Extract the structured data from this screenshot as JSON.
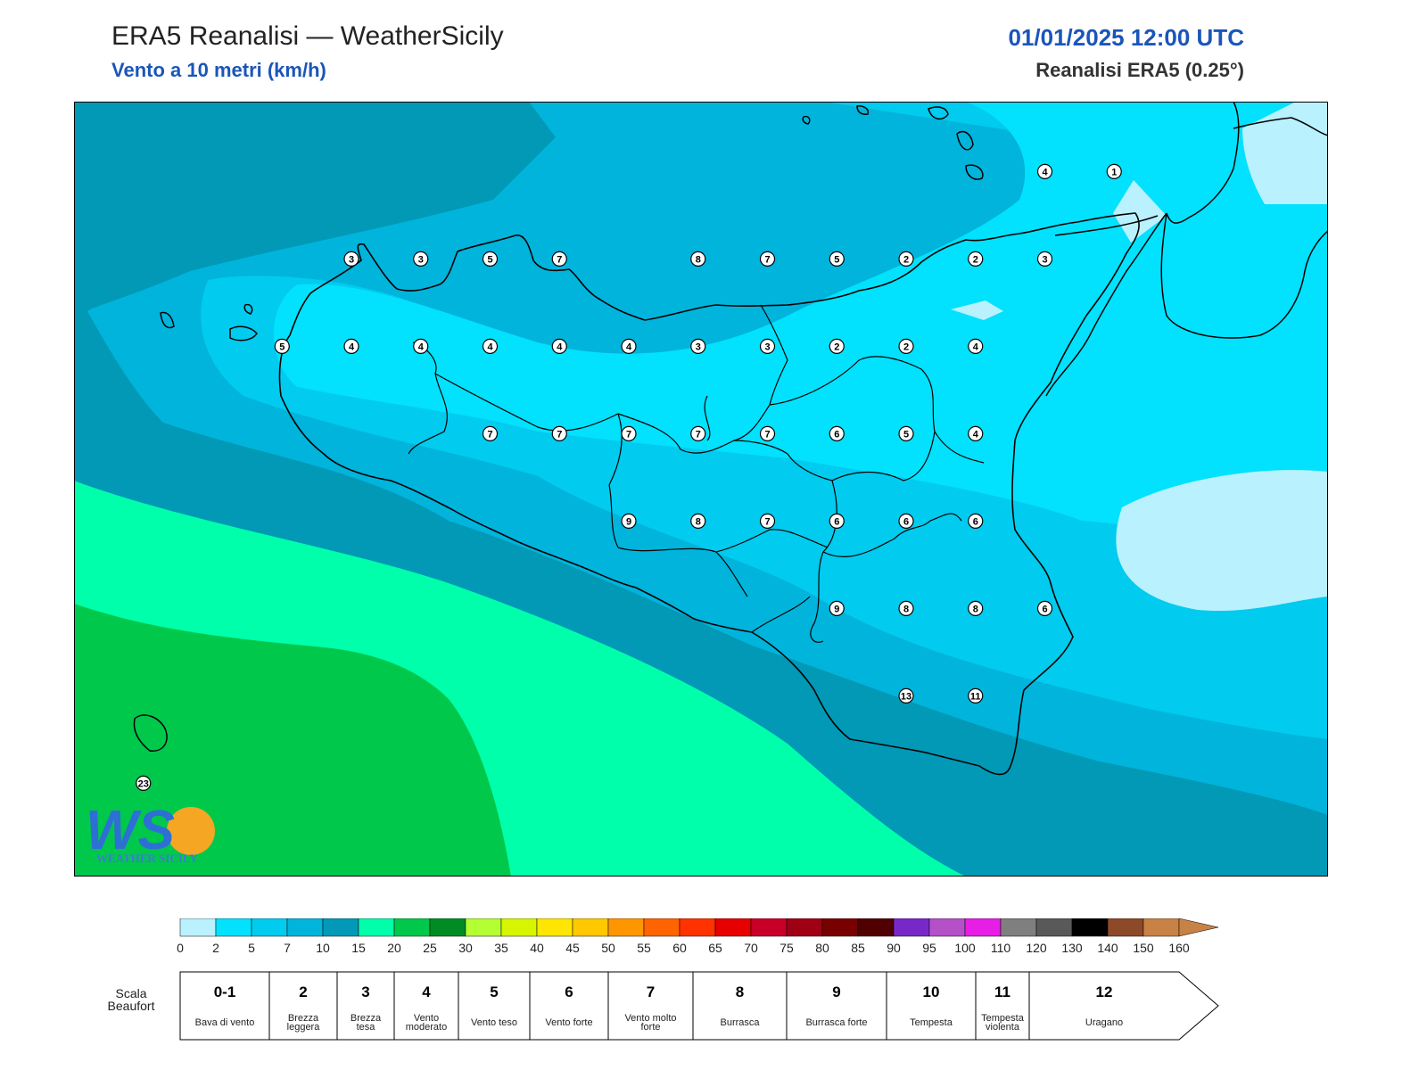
{
  "header": {
    "title": "ERA5 Reanalisi — WeatherSicily",
    "subtitle": "Vento a 10 metri (km/h)",
    "datetime": "01/01/2025 12:00 UTC",
    "source": "Reanalisi ERA5 (0.25°)"
  },
  "colors": {
    "wind_0_2": "#b9f1ff",
    "wind_2_5": "#02e1fd",
    "wind_5_7": "#01cbee",
    "wind_7_10": "#01b4dc",
    "wind_10_15": "#0199b6",
    "wind_15_20": "#00ffaa",
    "wind_20_25": "#00c84b"
  },
  "colorbar": {
    "ticks": [
      "0",
      "2",
      "5",
      "7",
      "10",
      "15",
      "20",
      "25",
      "30",
      "35",
      "40",
      "45",
      "50",
      "55",
      "60",
      "65",
      "70",
      "75",
      "80",
      "85",
      "90",
      "95",
      "100",
      "110",
      "120",
      "130",
      "140",
      "150",
      "160"
    ],
    "colors": [
      "#b9f1ff",
      "#02e1fd",
      "#01cbee",
      "#01b4dc",
      "#0199b6",
      "#00ffaa",
      "#00c84b",
      "#008c23",
      "#b4ff32",
      "#d7f500",
      "#ffe600",
      "#ffc800",
      "#ff9600",
      "#ff6400",
      "#ff3200",
      "#e60000",
      "#c80028",
      "#a00014",
      "#780000",
      "#500000",
      "#7828c8",
      "#b450c8",
      "#e61ee6",
      "#7f7f7f",
      "#595959",
      "#000000",
      "#8c4a28",
      "#c88246"
    ]
  },
  "beaufort": {
    "label": "Scala Beaufort",
    "classes": [
      {
        "num": "0-1",
        "desc": "Bava di vento"
      },
      {
        "num": "2",
        "desc": "Brezza leggera"
      },
      {
        "num": "3",
        "desc": "Brezza tesa"
      },
      {
        "num": "4",
        "desc": "Vento moderato"
      },
      {
        "num": "5",
        "desc": "Vento teso"
      },
      {
        "num": "6",
        "desc": "Vento forte"
      },
      {
        "num": "7",
        "desc": "Vento molto forte"
      },
      {
        "num": "8",
        "desc": "Burrasca"
      },
      {
        "num": "9",
        "desc": "Burrasca forte"
      },
      {
        "num": "10",
        "desc": "Tempesta"
      },
      {
        "num": "11",
        "desc": "Tempesta violenta"
      },
      {
        "num": "12",
        "desc": "Uragano"
      }
    ]
  },
  "station_values": [
    {
      "lat": 38.25,
      "lon": 12.75,
      "value": "3"
    },
    {
      "lat": 38.25,
      "lon": 13.0,
      "value": "3"
    },
    {
      "lat": 38.25,
      "lon": 13.25,
      "value": "5"
    },
    {
      "lat": 38.25,
      "lon": 13.5,
      "value": "7"
    },
    {
      "lat": 38.25,
      "lon": 14.0,
      "value": "8"
    },
    {
      "lat": 38.25,
      "lon": 14.25,
      "value": "7"
    },
    {
      "lat": 38.25,
      "lon": 14.5,
      "value": "5"
    },
    {
      "lat": 38.25,
      "lon": 14.75,
      "value": "2"
    },
    {
      "lat": 38.25,
      "lon": 15.0,
      "value": "2"
    },
    {
      "lat": 38.25,
      "lon": 15.25,
      "value": "3"
    },
    {
      "lat": 38.0,
      "lon": 12.5,
      "value": "5"
    },
    {
      "lat": 38.0,
      "lon": 12.75,
      "value": "4"
    },
    {
      "lat": 38.0,
      "lon": 13.0,
      "value": "4"
    },
    {
      "lat": 38.0,
      "lon": 13.25,
      "value": "4"
    },
    {
      "lat": 38.0,
      "lon": 13.5,
      "value": "4"
    },
    {
      "lat": 38.0,
      "lon": 13.75,
      "value": "4"
    },
    {
      "lat": 38.0,
      "lon": 14.0,
      "value": "3"
    },
    {
      "lat": 38.0,
      "lon": 14.25,
      "value": "3"
    },
    {
      "lat": 38.0,
      "lon": 14.5,
      "value": "2"
    },
    {
      "lat": 38.0,
      "lon": 14.75,
      "value": "2"
    },
    {
      "lat": 38.0,
      "lon": 15.0,
      "value": "4"
    },
    {
      "lat": 37.75,
      "lon": 13.25,
      "value": "7"
    },
    {
      "lat": 37.75,
      "lon": 13.5,
      "value": "7"
    },
    {
      "lat": 37.75,
      "lon": 13.75,
      "value": "7"
    },
    {
      "lat": 37.75,
      "lon": 14.0,
      "value": "7"
    },
    {
      "lat": 37.75,
      "lon": 14.25,
      "value": "7"
    },
    {
      "lat": 37.75,
      "lon": 14.5,
      "value": "6"
    },
    {
      "lat": 37.75,
      "lon": 14.75,
      "value": "5"
    },
    {
      "lat": 37.75,
      "lon": 15.0,
      "value": "4"
    },
    {
      "lat": 37.5,
      "lon": 13.75,
      "value": "9"
    },
    {
      "lat": 37.5,
      "lon": 14.0,
      "value": "8"
    },
    {
      "lat": 37.5,
      "lon": 14.25,
      "value": "7"
    },
    {
      "lat": 37.5,
      "lon": 14.5,
      "value": "6"
    },
    {
      "lat": 37.5,
      "lon": 14.75,
      "value": "6"
    },
    {
      "lat": 37.5,
      "lon": 15.0,
      "value": "6"
    },
    {
      "lat": 37.25,
      "lon": 14.5,
      "value": "9"
    },
    {
      "lat": 37.25,
      "lon": 14.75,
      "value": "8"
    },
    {
      "lat": 37.25,
      "lon": 15.0,
      "value": "8"
    },
    {
      "lat": 37.25,
      "lon": 15.25,
      "value": "6"
    },
    {
      "lat": 37.0,
      "lon": 14.75,
      "value": "13"
    },
    {
      "lat": 37.0,
      "lon": 15.0,
      "value": "11"
    },
    {
      "lat": 38.5,
      "lon": 15.25,
      "value": "4"
    },
    {
      "lat": 38.5,
      "lon": 15.5,
      "value": "1"
    },
    {
      "lat": 36.75,
      "lon": 12.0,
      "value": "23"
    }
  ],
  "logo": {
    "text": "WS",
    "caption": "WEATHER SICILY"
  }
}
